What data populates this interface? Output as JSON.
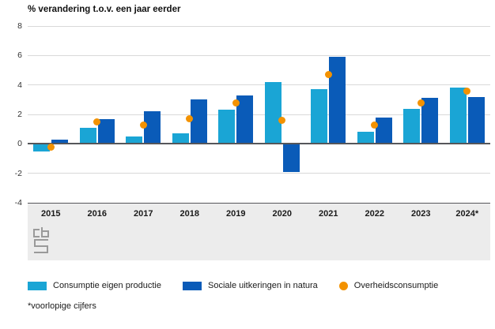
{
  "title": "% verandering t.o.v. een jaar eerder",
  "footnote": "*voorlopige cijfers",
  "logo": "cbs-logo",
  "colors": {
    "light_blue": "#1aa5d5",
    "dark_blue": "#0a5bb8",
    "orange": "#f39200",
    "grid": "#d9d9d9",
    "axis": "#55565a",
    "band_bg": "#ececec",
    "text": "#1a1a1a"
  },
  "legend": [
    {
      "label": "Consumptie eigen productie",
      "swatch": "square",
      "color_key": "light_blue"
    },
    {
      "label": "Sociale uitkeringen in natura",
      "swatch": "square",
      "color_key": "dark_blue"
    },
    {
      "label": "Overheidsconsumptie",
      "swatch": "circle",
      "color_key": "orange"
    }
  ],
  "chart_data": {
    "type": "bar",
    "title": "% verandering t.o.v. een jaar eerder",
    "categories": [
      "2015",
      "2016",
      "2017",
      "2018",
      "2019",
      "2020",
      "2021",
      "2022",
      "2023",
      "2024*"
    ],
    "series": [
      {
        "name": "Consumptie eigen productie",
        "render": "bar",
        "color": "#1aa5d5",
        "values": [
          -0.5,
          1.1,
          0.5,
          0.7,
          2.3,
          4.2,
          3.7,
          0.8,
          2.4,
          3.8
        ]
      },
      {
        "name": "Sociale uitkeringen in natura",
        "render": "bar",
        "color": "#0a5bb8",
        "values": [
          0.3,
          1.7,
          2.2,
          3.0,
          3.3,
          -1.9,
          5.9,
          1.8,
          3.1,
          3.2
        ]
      },
      {
        "name": "Overheidsconsumptie",
        "render": "point",
        "color": "#f39200",
        "values": [
          -0.2,
          1.5,
          1.3,
          1.7,
          2.8,
          1.6,
          4.7,
          1.3,
          2.8,
          3.6
        ]
      }
    ],
    "ylim": [
      -4,
      8
    ],
    "yticks": [
      8,
      6,
      4,
      2,
      0,
      -2,
      -4
    ],
    "grid": true,
    "legend_position": "bottom",
    "xlabel": "",
    "ylabel": "% verandering t.o.v. een jaar eerder"
  }
}
